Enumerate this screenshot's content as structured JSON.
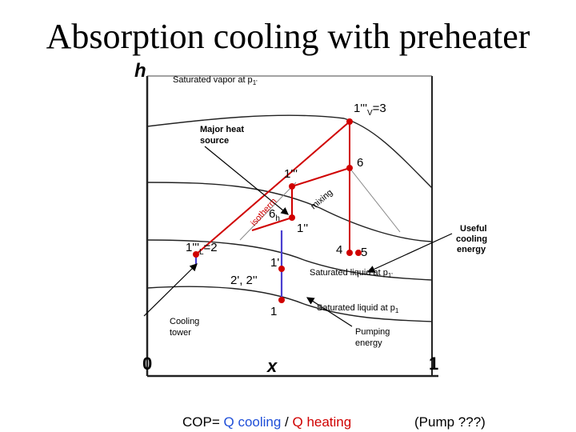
{
  "title": "Absorption cooling with preheater",
  "axes": {
    "y_label": "h",
    "x_label": "x",
    "x_origin": "0",
    "x_end": "1"
  },
  "annotations": {
    "sat_vapor": "Saturated vapor at p",
    "sat_vapor_sub": "1'",
    "sat_liquid_p1prime": "Saturated liquid at p",
    "sat_liquid_p1prime_sub": "1'",
    "sat_liquid_p1": "Saturated liquid at p",
    "sat_liquid_p1_sub": "1",
    "major_heat_1": "Major heat",
    "major_heat_2": "source",
    "useful_1": "Useful",
    "useful_2": "cooling",
    "useful_3": "energy",
    "cooling_tower_1": "Cooling",
    "cooling_tower_2": "tower",
    "pumping_1": "Pumping",
    "pumping_2": "energy",
    "isotherm": "isotherm",
    "mixing": "mixing"
  },
  "points": {
    "p1v_main": "1'''",
    "p1v_sub": "V",
    "p1v_val": "=3",
    "p6": "6",
    "p1ppp": "1'''",
    "p6h_main": "6",
    "p6h_sub": "h",
    "p1pp": "1''",
    "p1L_main": "1'''",
    "p1L_sub": "L",
    "p1L_val": "=2",
    "p4": "4",
    "p5": "5",
    "p1prime": "1'",
    "p2": "2', 2''",
    "p1": "1"
  },
  "footer": {
    "cop_prefix": "COP= ",
    "cop_cooling": "Q cooling",
    "cop_sep": " / ",
    "cop_heating": "Q heating",
    "pump": "(Pump ???)"
  }
}
